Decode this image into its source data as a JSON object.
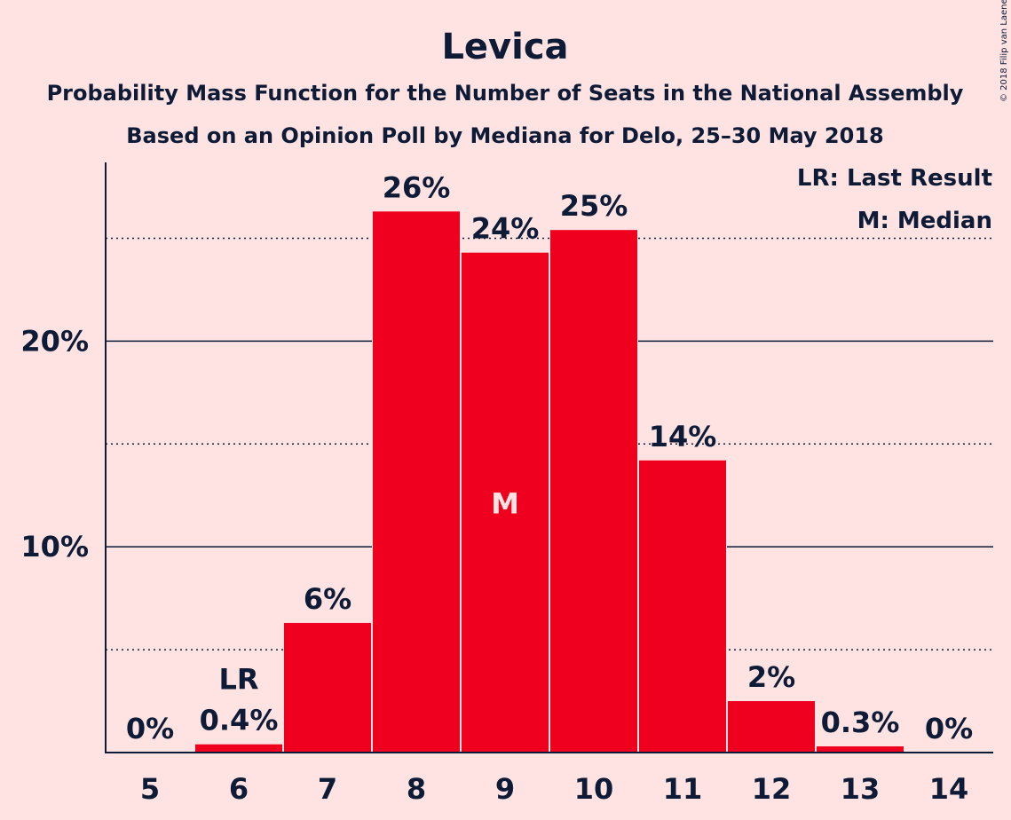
{
  "copyright": "© 2018 Filip van Laenen",
  "colors": {
    "background": "#ffe2e2",
    "bar": "#ee001e",
    "text": "#0d1b36",
    "median_label": "#ffe2e2"
  },
  "chart_data": {
    "type": "bar",
    "title": "Levica",
    "subtitle": "Probability Mass Function for the Number of Seats in the National Assembly",
    "subtitle2": "Based on an Opinion Poll by Mediana for Delo, 25–30 May 2018",
    "xlabel": "",
    "ylabel": "",
    "categories": [
      "5",
      "6",
      "7",
      "8",
      "9",
      "10",
      "11",
      "12",
      "13",
      "14"
    ],
    "values": [
      0,
      0.4,
      6.3,
      26.3,
      24.3,
      25.4,
      14.2,
      2.5,
      0.3,
      0
    ],
    "data_labels": [
      "0%",
      "0.4%",
      "6%",
      "26%",
      "24%",
      "25%",
      "14%",
      "2%",
      "0.3%",
      "0%"
    ],
    "ylim": [
      0,
      28.6
    ],
    "yticks": [
      {
        "value": 10,
        "label": "10%"
      },
      {
        "value": 20,
        "label": "20%"
      }
    ],
    "dotted_gridlines": [
      5,
      15,
      25
    ],
    "solid_gridlines": [
      10,
      20
    ],
    "markers": {
      "last_result": {
        "category": "6",
        "label": "LR"
      },
      "median": {
        "category": "9",
        "label": "M"
      }
    },
    "legend": {
      "placement": "top-right",
      "items": [
        "LR: Last Result",
        "M: Median"
      ]
    }
  }
}
